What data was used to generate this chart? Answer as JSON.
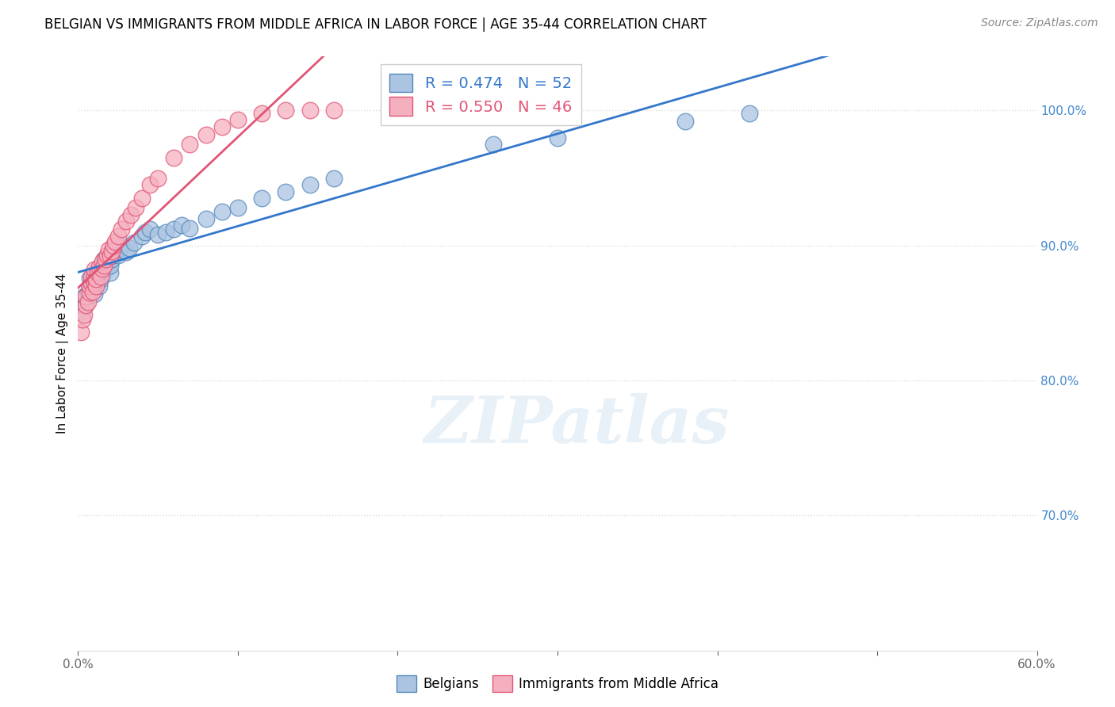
{
  "title": "BELGIAN VS IMMIGRANTS FROM MIDDLE AFRICA IN LABOR FORCE | AGE 35-44 CORRELATION CHART",
  "source": "Source: ZipAtlas.com",
  "ylabel": "In Labor Force | Age 35-44",
  "xlim": [
    0.0,
    0.6
  ],
  "ylim": [
    0.6,
    1.04
  ],
  "xticks": [
    0.0,
    0.1,
    0.2,
    0.3,
    0.4,
    0.5,
    0.6
  ],
  "yticks": [
    0.7,
    0.8,
    0.9,
    1.0
  ],
  "ytick_labels": [
    "70.0%",
    "80.0%",
    "90.0%",
    "100.0%"
  ],
  "xtick_labels": [
    "0.0%",
    "",
    "",
    "",
    "",
    "",
    "60.0%"
  ],
  "belgian_color": "#aac4e2",
  "immigrant_color": "#f5b0c0",
  "belgian_edge": "#5588bb",
  "immigrant_edge": "#e05575",
  "line_belgian_color": "#3377cc",
  "line_immigrant_color": "#e05575",
  "legend_R_belgian": "R = 0.474",
  "legend_N_belgian": "N = 52",
  "legend_R_immigrant": "R = 0.550",
  "legend_N_immigrant": "N = 46",
  "watermark": "ZIPatlas",
  "belgians_x": [
    0.003,
    0.004,
    0.005,
    0.006,
    0.007,
    0.007,
    0.008,
    0.009,
    0.009,
    0.01,
    0.011,
    0.012,
    0.012,
    0.013,
    0.014,
    0.015,
    0.015,
    0.016,
    0.016,
    0.017,
    0.018,
    0.019,
    0.02,
    0.02,
    0.021,
    0.022,
    0.023,
    0.025,
    0.026,
    0.027,
    0.03,
    0.032,
    0.035,
    0.04,
    0.042,
    0.045,
    0.05,
    0.055,
    0.06,
    0.065,
    0.07,
    0.08,
    0.09,
    0.1,
    0.115,
    0.13,
    0.145,
    0.16,
    0.26,
    0.3,
    0.38,
    0.42
  ],
  "belgians_y": [
    0.851,
    0.862,
    0.857,
    0.865,
    0.87,
    0.876,
    0.869,
    0.872,
    0.878,
    0.864,
    0.873,
    0.877,
    0.881,
    0.87,
    0.875,
    0.882,
    0.878,
    0.885,
    0.89,
    0.882,
    0.888,
    0.892,
    0.88,
    0.885,
    0.89,
    0.893,
    0.895,
    0.893,
    0.898,
    0.9,
    0.895,
    0.898,
    0.902,
    0.907,
    0.91,
    0.912,
    0.908,
    0.91,
    0.912,
    0.915,
    0.913,
    0.92,
    0.925,
    0.928,
    0.935,
    0.94,
    0.945,
    0.95,
    0.975,
    0.98,
    0.992,
    0.998
  ],
  "immigrants_x": [
    0.002,
    0.003,
    0.004,
    0.005,
    0.005,
    0.006,
    0.007,
    0.007,
    0.008,
    0.008,
    0.009,
    0.01,
    0.01,
    0.01,
    0.011,
    0.011,
    0.012,
    0.013,
    0.014,
    0.015,
    0.015,
    0.016,
    0.017,
    0.018,
    0.019,
    0.02,
    0.021,
    0.022,
    0.023,
    0.025,
    0.027,
    0.03,
    0.033,
    0.036,
    0.04,
    0.045,
    0.05,
    0.06,
    0.07,
    0.08,
    0.09,
    0.1,
    0.115,
    0.13,
    0.145,
    0.16
  ],
  "immigrants_y": [
    0.836,
    0.845,
    0.849,
    0.856,
    0.862,
    0.858,
    0.865,
    0.87,
    0.872,
    0.877,
    0.866,
    0.872,
    0.877,
    0.882,
    0.87,
    0.875,
    0.88,
    0.884,
    0.877,
    0.883,
    0.888,
    0.885,
    0.89,
    0.893,
    0.897,
    0.892,
    0.896,
    0.9,
    0.903,
    0.907,
    0.912,
    0.918,
    0.923,
    0.928,
    0.935,
    0.945,
    0.95,
    0.965,
    0.975,
    0.982,
    0.988,
    0.993,
    0.998,
    1.0,
    1.0,
    1.0
  ],
  "background_color": "#ffffff",
  "grid_color": "#dddddd",
  "title_fontsize": 12,
  "axis_fontsize": 11,
  "tick_fontsize": 11,
  "tick_color_x": "#666666",
  "tick_color_y": "#4488cc",
  "source_fontsize": 10
}
